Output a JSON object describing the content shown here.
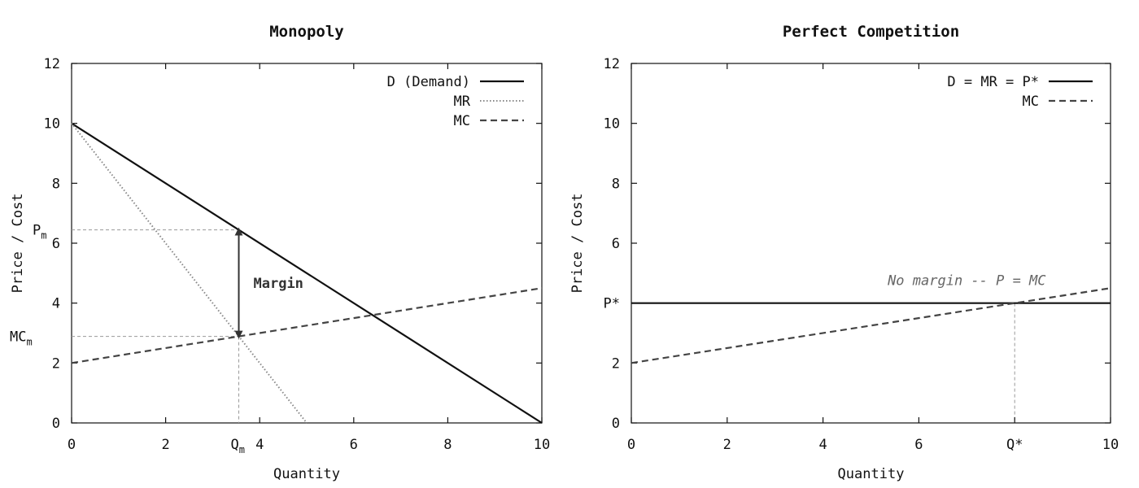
{
  "chart_data": [
    {
      "type": "line",
      "title": "Monopoly",
      "xlabel": "Quantity",
      "ylabel": "Price / Cost",
      "xlim": [
        0,
        10
      ],
      "ylim": [
        0,
        12
      ],
      "x_ticks": [
        0,
        2,
        4,
        6,
        8,
        10
      ],
      "y_ticks": [
        0,
        2,
        4,
        6,
        8,
        10,
        12
      ],
      "legend_position": "top-right",
      "series": [
        {
          "name": "D (Demand)",
          "style": "solid",
          "color": "#111111",
          "x": [
            0,
            10
          ],
          "y": [
            10,
            0
          ]
        },
        {
          "name": "MR",
          "style": "dotted",
          "color": "#888888",
          "x": [
            0,
            5
          ],
          "y": [
            10,
            0
          ]
        },
        {
          "name": "MC",
          "style": "dashed",
          "color": "#444444",
          "x": [
            0,
            10
          ],
          "y": [
            2,
            4.5
          ]
        }
      ],
      "annotations": {
        "qm_label": "Q",
        "qm_sub": "m",
        "qm_value": 3.5556,
        "pm_label": "P",
        "pm_sub": "m",
        "pm_value": 6.4444,
        "mcm_label": "MC",
        "mcm_sub": "m",
        "mcm_value": 2.8889,
        "margin_label": "Margin"
      }
    },
    {
      "type": "line",
      "title": "Perfect Competition",
      "xlabel": "Quantity",
      "ylabel": "Price / Cost",
      "xlim": [
        0,
        10
      ],
      "ylim": [
        0,
        12
      ],
      "x_ticks": [
        0,
        2,
        4,
        6,
        10
      ],
      "y_ticks": [
        0,
        2,
        6,
        8,
        10,
        12
      ],
      "extra_x_tick": {
        "label": "Q*",
        "value": 8
      },
      "extra_y_tick": {
        "label": "P*",
        "value": 4
      },
      "legend_position": "top-right",
      "series": [
        {
          "name": "D = MR = P*",
          "style": "solid",
          "color": "#111111",
          "x": [
            0,
            10
          ],
          "y": [
            4,
            4
          ]
        },
        {
          "name": "MC",
          "style": "dashed",
          "color": "#444444",
          "x": [
            0,
            10
          ],
          "y": [
            2,
            4.5
          ]
        }
      ],
      "annotations": {
        "note": "No margin -- P = MC",
        "note_x": 7,
        "note_y": 4.6
      }
    }
  ]
}
